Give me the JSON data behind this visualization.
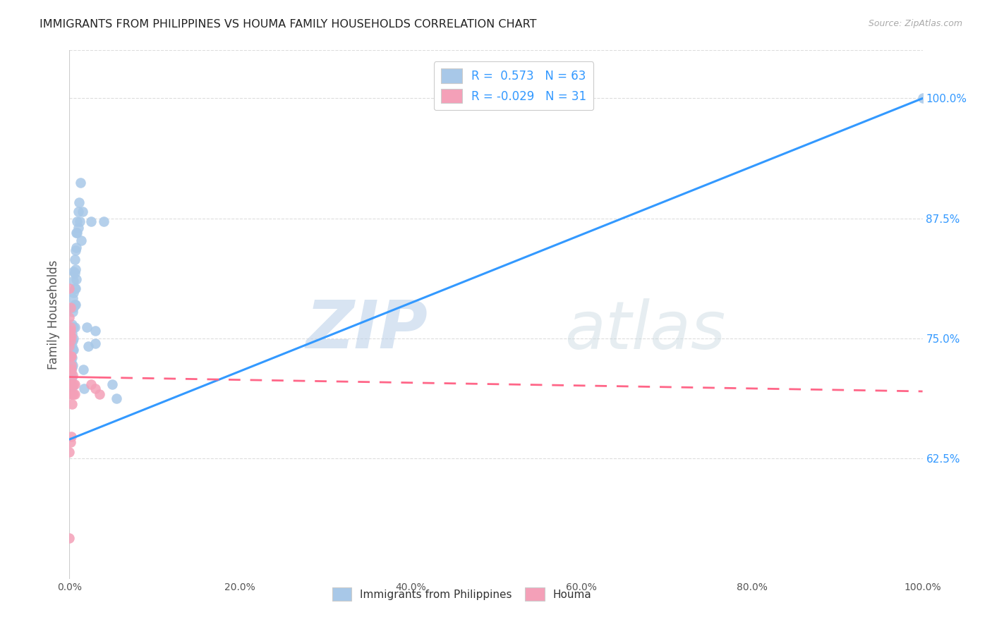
{
  "title": "IMMIGRANTS FROM PHILIPPINES VS HOUMA FAMILY HOUSEHOLDS CORRELATION CHART",
  "source": "Source: ZipAtlas.com",
  "ylabel": "Family Households",
  "legend_blue_r": "R =  0.573",
  "legend_blue_n": "N = 63",
  "legend_pink_r": "R = -0.029",
  "legend_pink_n": "N = 31",
  "watermark_zip": "ZIP",
  "watermark_atlas": "atlas",
  "blue_color": "#a8c8e8",
  "pink_color": "#f4a0b8",
  "blue_line_color": "#3399ff",
  "pink_line_color": "#ff6688",
  "background_color": "#ffffff",
  "grid_color": "#dddddd",
  "title_color": "#222222",
  "right_axis_color": "#3399ff",
  "xlim": [
    0.0,
    1.0
  ],
  "ylim": [
    0.5,
    1.05
  ],
  "yticks": [
    0.625,
    0.75,
    0.875,
    1.0
  ],
  "xticks": [
    0.0,
    0.2,
    0.4,
    0.6,
    0.8,
    1.0
  ],
  "blue_scatter": [
    [
      0.001,
      0.75
    ],
    [
      0.001,
      0.73
    ],
    [
      0.001,
      0.72
    ],
    [
      0.001,
      0.71
    ],
    [
      0.002,
      0.76
    ],
    [
      0.002,
      0.748
    ],
    [
      0.002,
      0.738
    ],
    [
      0.002,
      0.725
    ],
    [
      0.002,
      0.715
    ],
    [
      0.002,
      0.7
    ],
    [
      0.003,
      0.782
    ],
    [
      0.003,
      0.765
    ],
    [
      0.003,
      0.755
    ],
    [
      0.003,
      0.742
    ],
    [
      0.003,
      0.73
    ],
    [
      0.003,
      0.72
    ],
    [
      0.003,
      0.71
    ],
    [
      0.004,
      0.792
    ],
    [
      0.004,
      0.778
    ],
    [
      0.004,
      0.762
    ],
    [
      0.004,
      0.748
    ],
    [
      0.004,
      0.738
    ],
    [
      0.004,
      0.722
    ],
    [
      0.004,
      0.7
    ],
    [
      0.005,
      0.82
    ],
    [
      0.005,
      0.81
    ],
    [
      0.005,
      0.798
    ],
    [
      0.005,
      0.782
    ],
    [
      0.005,
      0.762
    ],
    [
      0.005,
      0.75
    ],
    [
      0.005,
      0.738
    ],
    [
      0.006,
      0.832
    ],
    [
      0.006,
      0.818
    ],
    [
      0.006,
      0.802
    ],
    [
      0.006,
      0.785
    ],
    [
      0.006,
      0.762
    ],
    [
      0.007,
      0.842
    ],
    [
      0.007,
      0.822
    ],
    [
      0.007,
      0.802
    ],
    [
      0.007,
      0.785
    ],
    [
      0.008,
      0.86
    ],
    [
      0.008,
      0.845
    ],
    [
      0.008,
      0.812
    ],
    [
      0.009,
      0.872
    ],
    [
      0.009,
      0.86
    ],
    [
      0.01,
      0.882
    ],
    [
      0.01,
      0.865
    ],
    [
      0.011,
      0.892
    ],
    [
      0.012,
      0.872
    ],
    [
      0.013,
      0.912
    ],
    [
      0.014,
      0.852
    ],
    [
      0.015,
      0.882
    ],
    [
      0.016,
      0.718
    ],
    [
      0.017,
      0.698
    ],
    [
      0.02,
      0.762
    ],
    [
      0.022,
      0.742
    ],
    [
      0.025,
      0.872
    ],
    [
      0.03,
      0.758
    ],
    [
      0.03,
      0.745
    ],
    [
      0.04,
      0.872
    ],
    [
      0.05,
      0.702
    ],
    [
      0.055,
      0.688
    ],
    [
      1.0,
      1.0
    ]
  ],
  "pink_scatter": [
    [
      0.0,
      0.802
    ],
    [
      0.0,
      0.772
    ],
    [
      0.0,
      0.742
    ],
    [
      0.001,
      0.782
    ],
    [
      0.001,
      0.762
    ],
    [
      0.001,
      0.748
    ],
    [
      0.001,
      0.732
    ],
    [
      0.001,
      0.718
    ],
    [
      0.001,
      0.702
    ],
    [
      0.001,
      0.692
    ],
    [
      0.002,
      0.752
    ],
    [
      0.002,
      0.732
    ],
    [
      0.002,
      0.718
    ],
    [
      0.002,
      0.702
    ],
    [
      0.003,
      0.692
    ],
    [
      0.003,
      0.682
    ],
    [
      0.004,
      0.712
    ],
    [
      0.005,
      0.702
    ],
    [
      0.005,
      0.692
    ],
    [
      0.006,
      0.702
    ],
    [
      0.006,
      0.692
    ],
    [
      0.0,
      0.632
    ],
    [
      0.0,
      0.542
    ],
    [
      0.001,
      0.642
    ],
    [
      0.002,
      0.648
    ],
    [
      0.025,
      0.702
    ],
    [
      0.03,
      0.698
    ],
    [
      0.035,
      0.692
    ],
    [
      0.0,
      0.752
    ],
    [
      0.001,
      0.758
    ],
    [
      0.002,
      0.722
    ]
  ],
  "blue_line_x": [
    0.0,
    1.0
  ],
  "blue_line_y_start": 0.645,
  "blue_line_y_end": 1.0,
  "pink_line_x": [
    0.0,
    1.0
  ],
  "pink_line_y_start": 0.71,
  "pink_line_y_end": 0.695
}
